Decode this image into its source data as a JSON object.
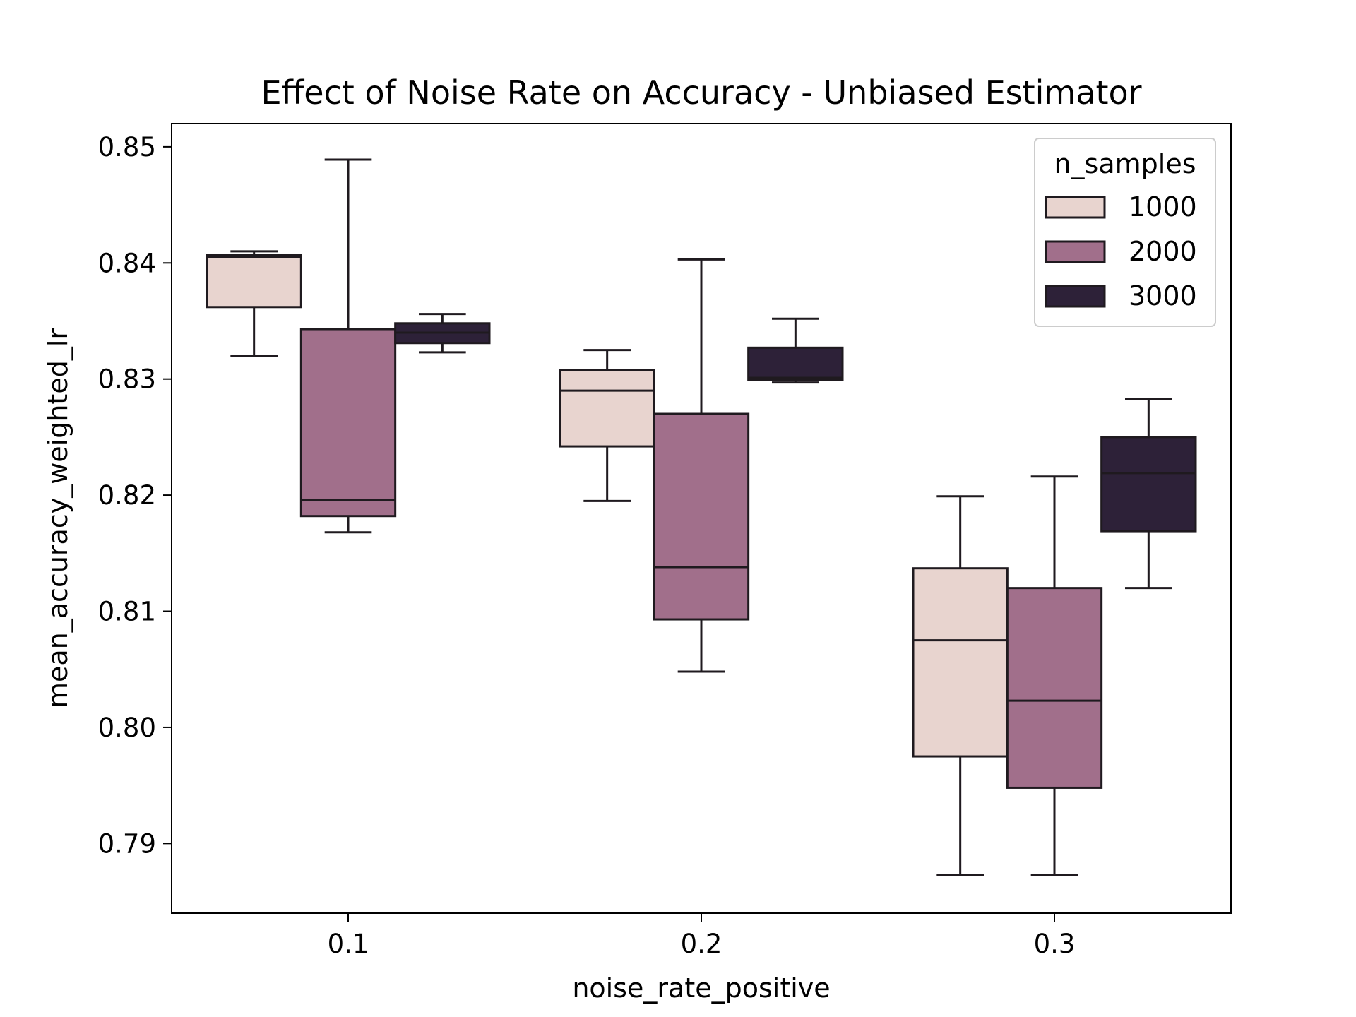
{
  "chart_data": {
    "type": "box",
    "title": "Effect of Noise Rate on Accuracy - Unbiased Estimator",
    "xlabel": "noise_rate_positive",
    "ylabel": "mean_accuracy_weighted_lr",
    "categories": [
      "0.1",
      "0.2",
      "0.3"
    ],
    "ylim": [
      0.784,
      0.852
    ],
    "yticks": [
      "0.79",
      "0.80",
      "0.81",
      "0.82",
      "0.83",
      "0.84",
      "0.85"
    ],
    "ytick_values": [
      0.79,
      0.8,
      0.81,
      0.82,
      0.83,
      0.84,
      0.85
    ],
    "grid": false,
    "legend": {
      "title": "n_samples",
      "position": "top-right"
    },
    "series": [
      {
        "name": "1000",
        "color": "#e8d4cf",
        "boxes": [
          {
            "whisker_low": 0.832,
            "q1": 0.8362,
            "median": 0.8405,
            "q3": 0.8407,
            "whisker_high": 0.841
          },
          {
            "whisker_low": 0.8195,
            "q1": 0.8242,
            "median": 0.829,
            "q3": 0.8308,
            "whisker_high": 0.8325
          },
          {
            "whisker_low": 0.7873,
            "q1": 0.7975,
            "median": 0.8075,
            "q3": 0.8137,
            "whisker_high": 0.8199
          }
        ]
      },
      {
        "name": "2000",
        "color": "#a16f8b",
        "boxes": [
          {
            "whisker_low": 0.8168,
            "q1": 0.8182,
            "median": 0.8196,
            "q3": 0.8343,
            "whisker_high": 0.8489
          },
          {
            "whisker_low": 0.8048,
            "q1": 0.8093,
            "median": 0.8138,
            "q3": 0.827,
            "whisker_high": 0.8403
          },
          {
            "whisker_low": 0.7873,
            "q1": 0.7948,
            "median": 0.8023,
            "q3": 0.812,
            "whisker_high": 0.8216
          }
        ]
      },
      {
        "name": "3000",
        "color": "#2d2138",
        "boxes": [
          {
            "whisker_low": 0.8323,
            "q1": 0.8331,
            "median": 0.834,
            "q3": 0.8348,
            "whisker_high": 0.8356
          },
          {
            "whisker_low": 0.8297,
            "q1": 0.8299,
            "median": 0.8301,
            "q3": 0.8327,
            "whisker_high": 0.8352
          },
          {
            "whisker_low": 0.812,
            "q1": 0.8169,
            "median": 0.8219,
            "q3": 0.825,
            "whisker_high": 0.8283
          }
        ]
      }
    ]
  }
}
